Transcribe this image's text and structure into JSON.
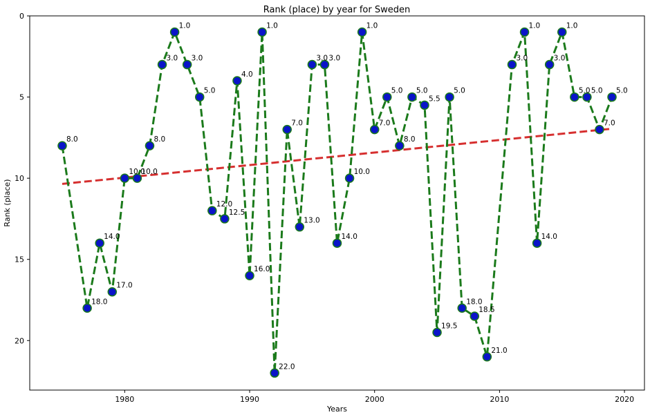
{
  "chart_data": {
    "type": "line",
    "title": "Rank (place) by year for Sweden",
    "xlabel": "Years",
    "ylabel": "Rank (place)",
    "xlim": [
      1972.4,
      2021.6
    ],
    "ylim": [
      23.05,
      0
    ],
    "y_inverted": true,
    "grid": false,
    "x_ticks": [
      1980,
      1990,
      2000,
      2010,
      2020
    ],
    "y_ticks": [
      0,
      5,
      10,
      15,
      20
    ],
    "series": [
      {
        "line_color": "#1b7a1b",
        "line_style": "dashed",
        "marker_color": "#0a14c8",
        "x": [
          1975,
          1977,
          1978,
          1979,
          1980,
          1981,
          1982,
          1983,
          1984,
          1985,
          1986,
          1987,
          1988,
          1989,
          1990,
          1991,
          1992,
          1993,
          1994,
          1995,
          1996,
          1997,
          1998,
          1999,
          2000,
          2001,
          2002,
          2003,
          2004,
          2005,
          2006,
          2007,
          2008,
          2009,
          2011,
          2012,
          2013,
          2014,
          2015,
          2016,
          2017,
          2018,
          2019
        ],
        "y": [
          8.0,
          18.0,
          14.0,
          17.0,
          10.0,
          10.0,
          8.0,
          3.0,
          1.0,
          3.0,
          5.0,
          12.0,
          12.5,
          4.0,
          16.0,
          1.0,
          22.0,
          7.0,
          13.0,
          3.0,
          3.0,
          14.0,
          10.0,
          1.0,
          7.0,
          5.0,
          8.0,
          5.0,
          5.5,
          19.5,
          5.0,
          18.0,
          18.5,
          21.0,
          3.0,
          1.0,
          14.0,
          3.0,
          1.0,
          5.0,
          5.0,
          7.0,
          5.0
        ],
        "labels": [
          "8.0",
          "18.0",
          "14.0",
          "17.0",
          "10.0",
          "10.0",
          "8.0",
          "3.0",
          "1.0",
          "3.0",
          "5.0",
          "12.0",
          "12.5",
          "4.0",
          "16.0",
          "1.0",
          "22.0",
          "7.0",
          "13.0",
          "3.0",
          "3.0",
          "14.0",
          "10.0",
          "1.0",
          "7.0",
          "5.0",
          "8.0",
          "5.0",
          "5.5",
          "19.5",
          "5.0",
          "18.0",
          "18.5",
          "21.0",
          "3.0",
          "1.0",
          "14.0",
          "3.0",
          "1.0",
          "5.0",
          "5.0",
          "7.0",
          "5.0"
        ]
      }
    ],
    "trendline": {
      "line_color": "#d62f2f",
      "line_style": "dashed",
      "x": [
        1975,
        2019
      ],
      "y": [
        10.35,
        6.95
      ]
    }
  }
}
